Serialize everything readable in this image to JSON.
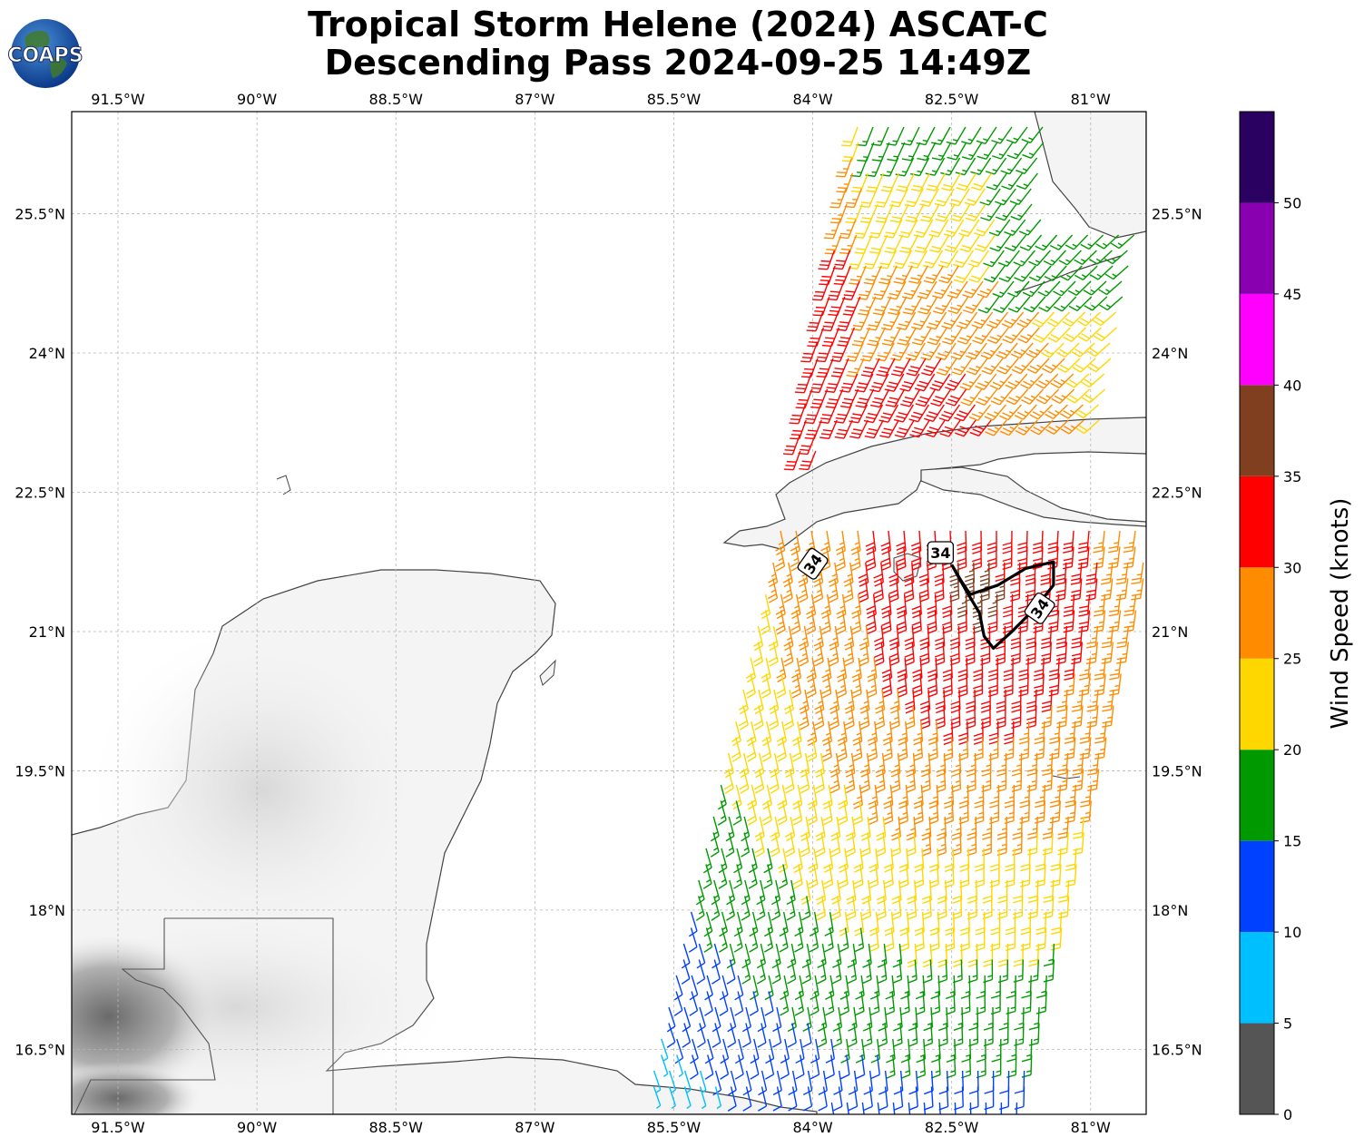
{
  "title": {
    "line1": "Tropical Storm Helene (2024) ASCAT-C",
    "line2": "Descending Pass 2024-09-25 14:49Z"
  },
  "logo": {
    "text": "COAPS",
    "icon": "globe-logo-icon"
  },
  "map": {
    "lon_range": [
      -92.0,
      -80.4
    ],
    "lat_range": [
      15.8,
      26.6
    ],
    "lon_ticks": [
      -91.5,
      -90,
      -88.5,
      -87,
      -85.5,
      -84,
      -82.5,
      -81
    ],
    "lon_tick_labels": [
      "91.5°W",
      "90°W",
      "88.5°W",
      "87°W",
      "85.5°W",
      "84°W",
      "82.5°W",
      "81°W"
    ],
    "lat_ticks": [
      16.5,
      18,
      19.5,
      21,
      22.5,
      24,
      25.5
    ],
    "lat_tick_labels": [
      "16.5°N",
      "18°N",
      "19.5°N",
      "21°N",
      "22.5°N",
      "24°N",
      "25.5°N"
    ],
    "grid": true,
    "grid_style": "dashed-light-gray"
  },
  "colorbar": {
    "label": "Wind Speed (knots)",
    "ticks": [
      0,
      5,
      10,
      15,
      20,
      25,
      30,
      35,
      40,
      45,
      50
    ],
    "tick_labels": [
      "0",
      "5",
      "10",
      "15",
      "20",
      "25",
      "30",
      "35",
      "40",
      "45",
      "50"
    ],
    "max": 55,
    "bins": [
      {
        "from": 0,
        "to": 5,
        "color": "#555555"
      },
      {
        "from": 5,
        "to": 10,
        "color": "#00bfff"
      },
      {
        "from": 10,
        "to": 15,
        "color": "#0040ff"
      },
      {
        "from": 15,
        "to": 20,
        "color": "#009900"
      },
      {
        "from": 20,
        "to": 25,
        "color": "#ffd700"
      },
      {
        "from": 25,
        "to": 30,
        "color": "#ff8c00"
      },
      {
        "from": 30,
        "to": 35,
        "color": "#ff0000"
      },
      {
        "from": 35,
        "to": 40,
        "color": "#804020"
      },
      {
        "from": 40,
        "to": 45,
        "color": "#ff00ff"
      },
      {
        "from": 45,
        "to": 50,
        "color": "#8800b0"
      },
      {
        "from": 50,
        "to": 55,
        "color": "#2a0060"
      }
    ]
  },
  "contour_34kt": {
    "value": "34",
    "labels": [
      {
        "text": "34",
        "lon": -82.62,
        "lat": 21.85,
        "angle": 0
      },
      {
        "text": "34",
        "lon": -81.55,
        "lat": 21.25,
        "angle": -55
      },
      {
        "text": "34",
        "lon": -84.0,
        "lat": 21.73,
        "angle": -55
      }
    ],
    "path": [
      [
        -82.5,
        21.72
      ],
      [
        -82.4,
        21.55
      ],
      [
        -82.3,
        21.4
      ],
      [
        -82.0,
        21.5
      ],
      [
        -81.7,
        21.68
      ],
      [
        -81.4,
        21.75
      ],
      [
        -81.4,
        21.5
      ],
      [
        -81.6,
        21.25
      ],
      [
        -81.85,
        21.0
      ],
      [
        -82.05,
        20.82
      ],
      [
        -82.15,
        20.95
      ],
      [
        -82.2,
        21.2
      ],
      [
        -82.35,
        21.45
      ],
      [
        -82.5,
        21.72
      ]
    ]
  }
}
